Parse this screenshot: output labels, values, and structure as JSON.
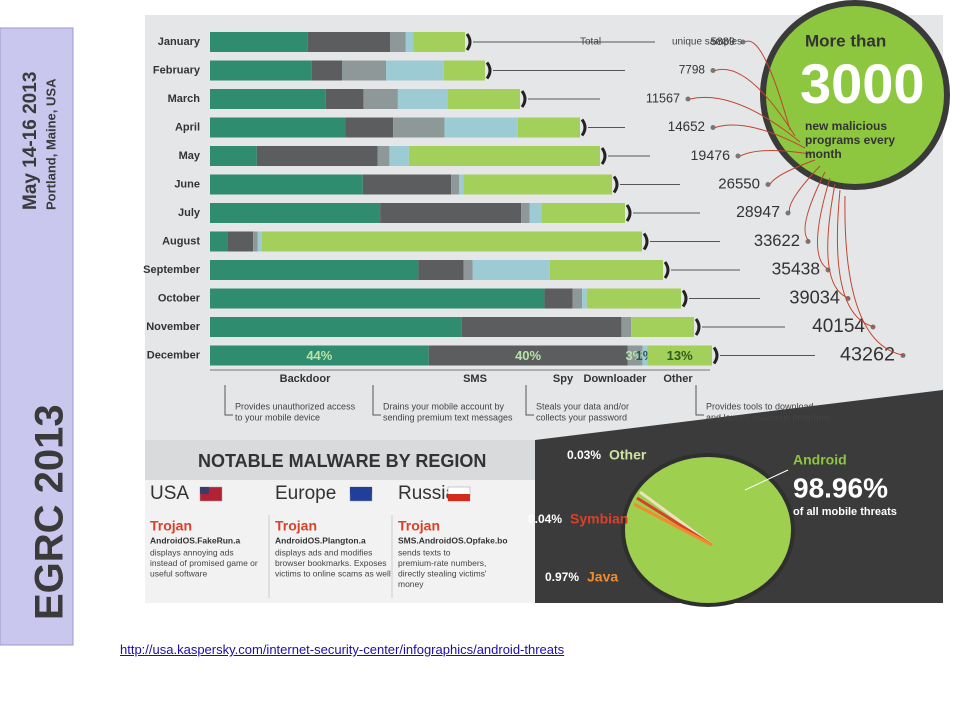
{
  "sidebar": {
    "event": "EGRC 2013",
    "dates": "May 14-16 2013",
    "location": "Portland, Maine, USA"
  },
  "infographic": {
    "months": [
      "January",
      "February",
      "March",
      "April",
      "May",
      "June",
      "July",
      "August",
      "September",
      "October",
      "November",
      "December"
    ],
    "totals": [
      5889,
      7798,
      11567,
      14652,
      19476,
      26550,
      28947,
      33622,
      35438,
      39034,
      40154,
      43262
    ],
    "total_note": {
      "prefix": "Total",
      "suffix": "unique samples"
    },
    "segments": [
      {
        "name": "Backdoor",
        "color": "#2f8c6f"
      },
      {
        "name": "SMS",
        "color": "#5b5d5e"
      },
      {
        "name": "Spy",
        "color": "#8e9899"
      },
      {
        "name": "Downloader",
        "color": "#9dcbd4"
      },
      {
        "name": "Other",
        "color": "#a3cf5b"
      }
    ],
    "shares": [
      [
        38,
        32,
        6,
        3,
        20
      ],
      [
        37,
        11,
        16,
        21,
        15
      ],
      [
        37,
        12,
        11,
        16,
        23
      ],
      [
        37,
        13,
        14,
        20,
        17
      ],
      [
        12,
        31,
        3,
        5,
        49
      ],
      [
        38,
        22,
        2,
        1,
        37
      ],
      [
        41,
        34,
        2,
        3,
        20
      ],
      [
        4,
        6,
        1,
        1,
        88
      ],
      [
        46,
        10,
        2,
        17,
        25
      ],
      [
        71,
        6,
        2,
        1,
        20
      ],
      [
        52,
        33,
        2,
        0,
        13
      ],
      [
        44,
        40,
        3,
        1,
        13
      ]
    ],
    "december_labels": [
      "44%",
      "40%",
      "3%",
      "1%",
      "13%"
    ],
    "descriptions": [
      [
        "Provides unauthorized access",
        "to your mobile device"
      ],
      [
        "Drains your mobile account by",
        "sending premium text messages"
      ],
      [
        "Steals your data and/or",
        "collects your password"
      ],
      [
        "Provides tools to download",
        "and launch malicious programs"
      ]
    ],
    "callout": {
      "lead": "More than",
      "number": "3000",
      "lines": [
        "new malicious",
        "programs every",
        "month"
      ]
    },
    "region_title": "NOTABLE MALWARE BY REGION",
    "regions": [
      {
        "name": "USA",
        "threat": "Trojan",
        "malware": "AndroidOS.FakeRun.a",
        "description": [
          "displays annoying ads",
          "instead of promised game or",
          "useful software"
        ]
      },
      {
        "name": "Europe",
        "threat": "Trojan",
        "malware": "AndroidOS.Plangton.a",
        "description": [
          "displays ads and modifies",
          "browser bookmarks. Exposes",
          "victims to online scams as well"
        ]
      },
      {
        "name": "Russia",
        "threat": "Trojan",
        "malware": "SMS.AndroidOS.Opfake.bo",
        "description": [
          "sends texts to",
          "premium-rate numbers,",
          "directly stealing victims'",
          "money"
        ]
      }
    ],
    "platforms": {
      "main": {
        "name": "Android",
        "share": "98.96%",
        "note": "of all mobile threats"
      },
      "others": [
        {
          "share": "0.03%",
          "name": "Other"
        },
        {
          "share": "0.04%",
          "name": "Symbian"
        },
        {
          "share": "0.97%",
          "name": "Java"
        }
      ]
    }
  },
  "link": "http://usa.kaspersky.com/internet-security-center/infographics/android-threats"
}
